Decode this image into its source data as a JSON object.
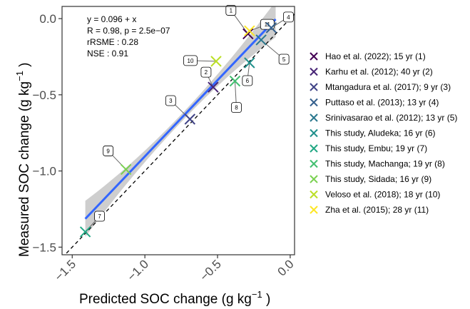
{
  "chart_data": {
    "type": "scatter",
    "xlabel": "Predicted SOC change (g kg",
    "ylabel": "Measured SOC change (g kg",
    "unit_exponent": "−1",
    "unit_close": " )",
    "xlim": [
      -1.57,
      0.03
    ],
    "ylim": [
      -1.55,
      0.08
    ],
    "x_ticks": [
      -1.5,
      -1.0,
      -0.5,
      0.0
    ],
    "x_tick_labels": [
      "−1.5",
      "−1.0",
      "−0.5",
      "0.0"
    ],
    "y_ticks": [
      0.0,
      -0.5,
      -1.0,
      -1.5
    ],
    "y_tick_labels": [
      "0.0",
      "−0.5",
      "−1.0",
      "−1.5"
    ],
    "stats": {
      "equation": "y = 0.096 + x",
      "r_line": "R = 0.98, p = 2.5e−07",
      "rrsme": "rRSME : 0.28",
      "nse": "NSE : 0.91"
    },
    "regression": {
      "intercept": 0.096,
      "slope": 1.0,
      "x_range": [
        -1.41,
        -0.1
      ]
    },
    "one_to_one": true,
    "grid": false,
    "legend_position": "right",
    "series": [
      {
        "name": "Hao et al. (2022); 15 yr (1)",
        "label": "1",
        "color": "#440154",
        "x": -0.29,
        "y": -0.1
      },
      {
        "name": "Karhu et al. (2012); 40 yr (2)",
        "label": "2",
        "color": "#482576",
        "x": -0.53,
        "y": -0.45
      },
      {
        "name": "Mtangadura et al. (2017); 9 yr (3)",
        "label": "3",
        "color": "#414487",
        "x": -0.69,
        "y": -0.66
      },
      {
        "name": "Puttaso et al. (2013); 13 yr (4)",
        "label": "4",
        "color": "#35608D",
        "x": -0.13,
        "y": -0.06
      },
      {
        "name": "Srinivasarao et al. (2012); 13 yr (5)",
        "label": "5",
        "color": "#2A788E",
        "x": -0.2,
        "y": -0.14
      },
      {
        "name": "This study, Aludeka; 16 yr (6)",
        "label": "6",
        "color": "#21908C",
        "x": -0.28,
        "y": -0.29
      },
      {
        "name": "This study, Embu; 19 yr (7)",
        "label": "7",
        "color": "#22A884",
        "x": -1.41,
        "y": -1.4
      },
      {
        "name": "This study, Machanga; 19 yr (8)",
        "label": "8",
        "color": "#43BF71",
        "x": -0.38,
        "y": -0.41
      },
      {
        "name": "This study, Sidada; 16 yr (9)",
        "label": "9",
        "color": "#7AD151",
        "x": -1.13,
        "y": -0.99
      },
      {
        "name": "Veloso et al. (2018); 18 yr (10)",
        "label": "10",
        "color": "#BBDF27",
        "x": -0.51,
        "y": -0.28
      },
      {
        "name": "Zha et al. (2015); 28 yr (11)",
        "label": "11",
        "color": "#FDE725",
        "x": -0.28,
        "y": -0.08
      }
    ]
  }
}
